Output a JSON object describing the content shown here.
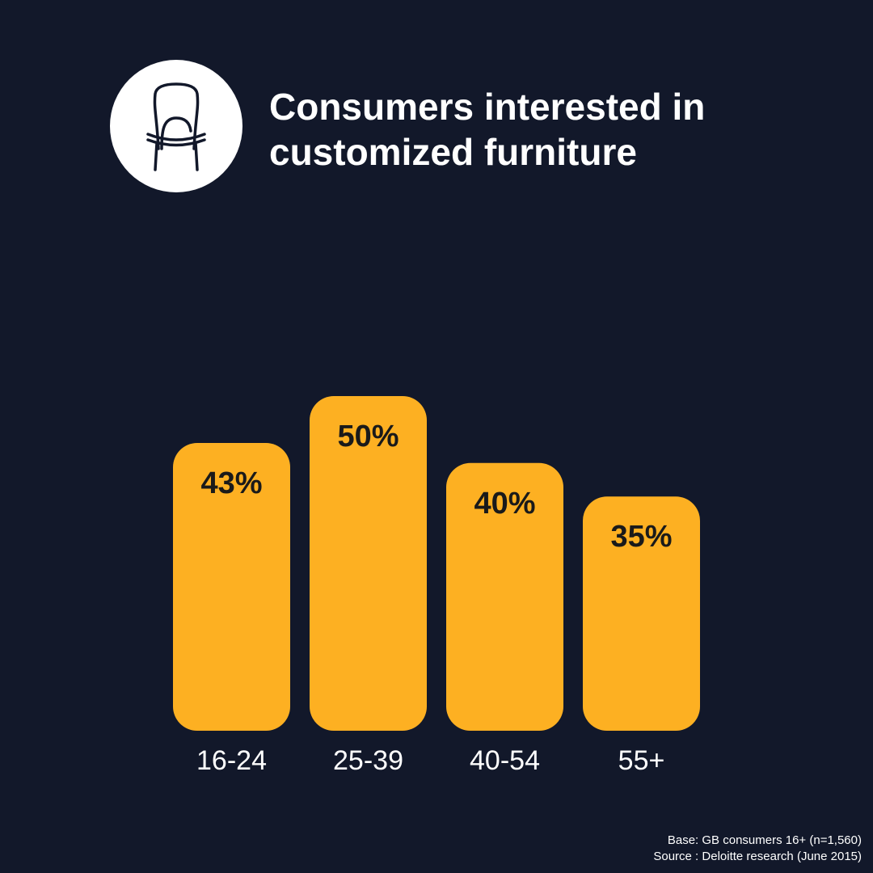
{
  "header": {
    "icon": "chair-icon",
    "title_line1": "Consumers interested in",
    "title_line2": "customized furniture"
  },
  "colors": {
    "background": "#12182a",
    "bar": "#fdb022",
    "value_text": "#1a1a1a",
    "text": "#ffffff"
  },
  "chart_data": {
    "type": "bar",
    "title": "Consumers interested in customized furniture",
    "categories": [
      "16-24",
      "25-39",
      "40-54",
      "55+"
    ],
    "values": [
      43,
      50,
      40,
      35
    ],
    "value_labels": [
      "43%",
      "50%",
      "40%",
      "35%"
    ],
    "unit": "%",
    "ylim": [
      0,
      71
    ],
    "grid": false,
    "legend": "none",
    "xlabel": "",
    "ylabel": ""
  },
  "footnote": {
    "base": "Base: GB consumers 16+ (n=1,560)",
    "source": "Source : Deloitte research (June 2015)"
  }
}
